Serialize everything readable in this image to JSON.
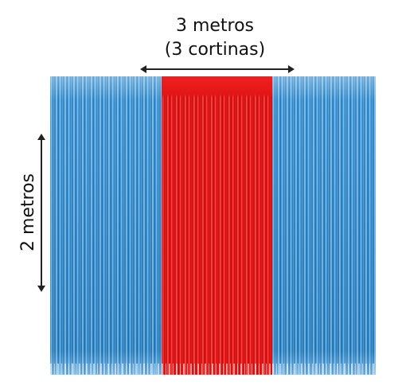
{
  "labels": {
    "width_line1": "3 metros",
    "width_line2": "(3 cortinas)",
    "height": "2 metros"
  },
  "curtains": [
    {
      "color": "#2b8fd6",
      "name": "blue"
    },
    {
      "color": "#e31616",
      "name": "red"
    },
    {
      "color": "#2b8fd6",
      "name": "blue"
    }
  ],
  "colors": {
    "text": "#111111",
    "arrow": "#222222"
  }
}
